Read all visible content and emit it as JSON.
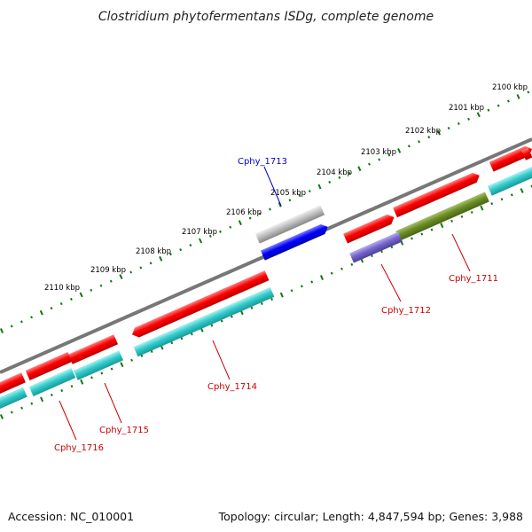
{
  "title": "Clostridium phytofermentans ISDg, complete genome",
  "accession": "Accession: NC_010001",
  "topology": "Topology: circular; Length: 4,847,594 bp; Genes: 3,988",
  "kbp_labels": [
    "2100 kbp",
    "2101 kbp",
    "2102 kbp",
    "2103 kbp",
    "2104 kbp",
    "2105 kbp",
    "2106 kbp",
    "2107 kbp",
    "2108 kbp",
    "2109 kbp",
    "2110 kbp"
  ],
  "gene_labels": [
    {
      "name": "Cphy_1711",
      "color": "#cc0000"
    },
    {
      "name": "Cphy_1712",
      "color": "#cc0000"
    },
    {
      "name": "Cphy_1713",
      "color": "#0000cc"
    },
    {
      "name": "Cphy_1714",
      "color": "#cc0000"
    },
    {
      "name": "Cphy_1715",
      "color": "#cc0000"
    },
    {
      "name": "Cphy_1716",
      "color": "#cc0000"
    }
  ],
  "colors": {
    "cds_forward": "#ff0000",
    "cds_reverse": "#33cccc",
    "gene_1713_gray": "#aaaaaa",
    "gene_1713_blue": "#0000ff",
    "gene_1712": "#7766cc",
    "gene_1711": "#6b8e23",
    "backbone": "#777777",
    "ticks": "#117711"
  }
}
